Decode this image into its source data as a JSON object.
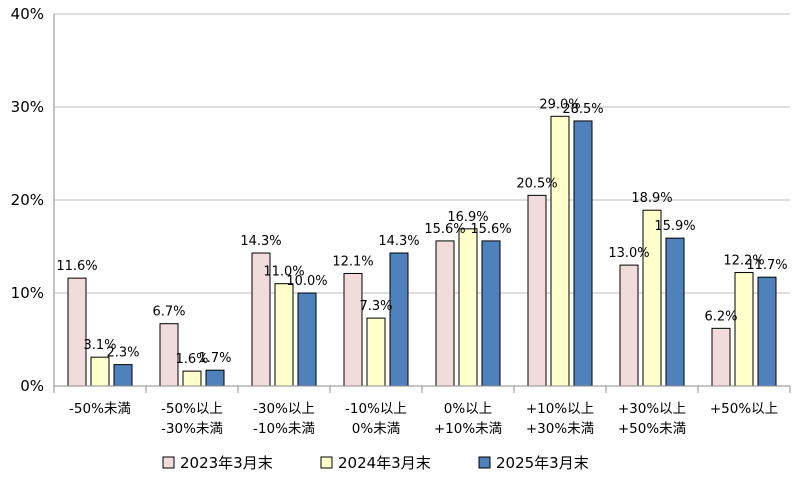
{
  "chart_data": {
    "type": "bar",
    "title": "",
    "xlabel": "",
    "ylabel": "",
    "ylim": [
      0,
      40
    ],
    "yticks": [
      0,
      10,
      20,
      30,
      40
    ],
    "ytick_labels": [
      "0%",
      "10%",
      "20%",
      "30%",
      "40%"
    ],
    "grid": true,
    "legend_position": "bottom",
    "categories": [
      [
        "-50%未満"
      ],
      [
        "-50%以上",
        "-30%未満"
      ],
      [
        "-30%以上",
        "-10%未満"
      ],
      [
        "-10%以上",
        "0%未満"
      ],
      [
        "0%以上",
        "+10%未満"
      ],
      [
        "+10%以上",
        "+30%未満"
      ],
      [
        "+30%以上",
        "+50%未満"
      ],
      [
        "+50%以上"
      ]
    ],
    "series": [
      {
        "name": "2023年3月末",
        "color": "#f2dcdb",
        "values": [
          11.6,
          6.7,
          14.3,
          12.1,
          15.6,
          20.5,
          13.0,
          6.2
        ],
        "labels": [
          "11.6%",
          "6.7%",
          "14.3%",
          "12.1%",
          "15.6%",
          "20.5%",
          "13.0%",
          "6.2%"
        ]
      },
      {
        "name": "2024年3月末",
        "color": "#ffffcc",
        "values": [
          3.1,
          1.6,
          11.0,
          7.3,
          16.9,
          29.0,
          18.9,
          12.2
        ],
        "labels": [
          "3.1%",
          "1.6%",
          "11.0%",
          "7.3%",
          "16.9%",
          "29.0%",
          "18.9%",
          "12.2%"
        ]
      },
      {
        "name": "2025年3月末",
        "color": "#4f81bd",
        "values": [
          2.3,
          1.7,
          10.0,
          14.3,
          15.6,
          28.5,
          15.9,
          11.7
        ],
        "labels": [
          "2.3%",
          "1.7%",
          "10.0%",
          "14.3%",
          "15.6%",
          "28.5%",
          "15.9%",
          "11.7%"
        ]
      }
    ]
  }
}
